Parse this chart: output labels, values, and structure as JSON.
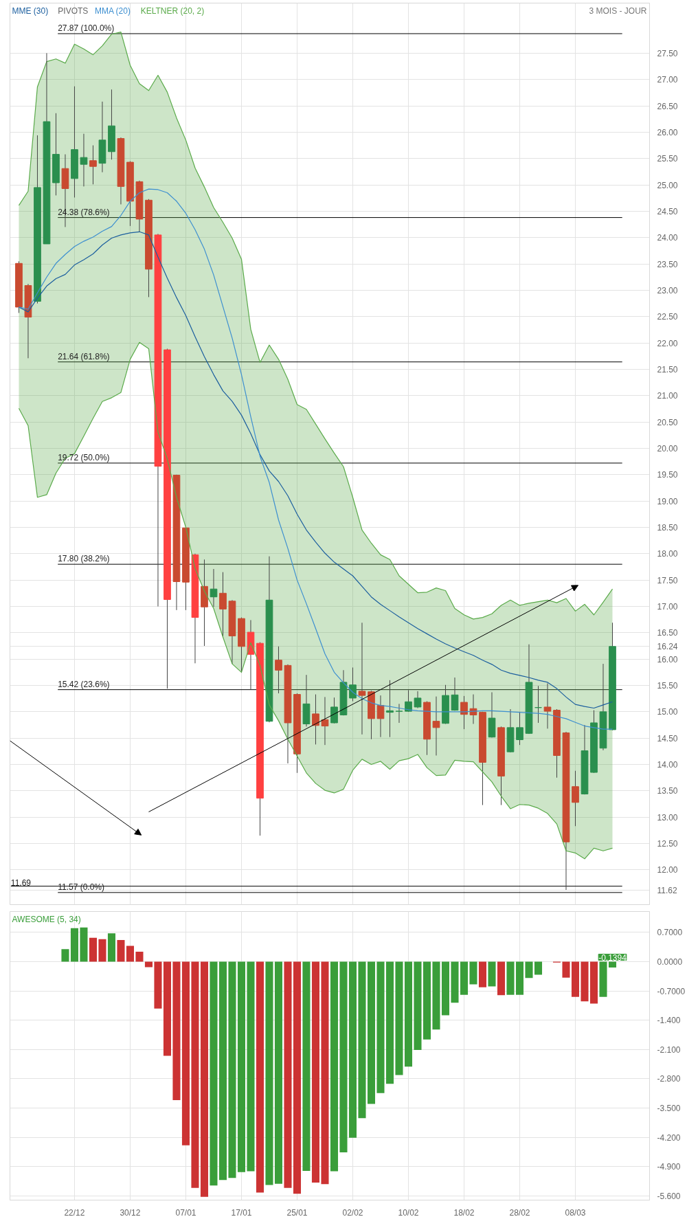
{
  "chart_data": [
    {
      "type": "candlestick",
      "subtitle": "3 MOIS - JOUR",
      "categories": [
        null,
        null,
        null,
        null,
        null,
        null,
        null,
        null,
        null,
        null,
        null,
        null,
        null,
        null,
        null,
        null,
        null,
        null,
        null,
        null,
        null,
        null,
        null,
        null,
        null,
        null,
        null,
        null,
        null,
        null,
        null,
        null,
        null,
        null,
        null,
        null,
        null,
        null,
        null,
        null,
        null,
        null,
        null,
        null,
        null,
        null,
        null,
        null,
        null,
        null,
        null,
        null,
        null,
        null,
        null,
        null,
        null,
        null,
        null,
        null,
        null,
        null,
        null,
        null,
        null
      ],
      "ohlc": [
        [
          23.51,
          23.55,
          22.57,
          22.68
        ],
        [
          23.09,
          23.12,
          21.71,
          22.49
        ],
        [
          22.79,
          25.94,
          22.75,
          24.95
        ],
        [
          23.88,
          27.5,
          23.88,
          26.2
        ],
        [
          25.04,
          26.36,
          24.8,
          25.58
        ],
        [
          25.31,
          25.58,
          24.2,
          24.93
        ],
        [
          25.12,
          26.87,
          24.76,
          25.67
        ],
        [
          25.39,
          25.97,
          24.97,
          25.52
        ],
        [
          25.46,
          25.75,
          25.01,
          25.35
        ],
        [
          25.41,
          26.58,
          25.24,
          25.85
        ],
        [
          25.63,
          26.81,
          25.48,
          26.12
        ],
        [
          25.88,
          25.9,
          24.63,
          24.97
        ],
        [
          25.43,
          25.45,
          24.22,
          24.69
        ],
        [
          25.06,
          25.08,
          24.1,
          24.35
        ],
        [
          24.71,
          24.73,
          22.87,
          23.4
        ],
        [
          24.05,
          24.07,
          17.0,
          19.66
        ],
        [
          21.87,
          21.89,
          15.44,
          17.13
        ],
        [
          19.49,
          19.5,
          16.93,
          17.47
        ],
        [
          18.49,
          18.5,
          16.93,
          17.46
        ],
        [
          17.98,
          18.0,
          15.92,
          16.79
        ],
        [
          17.38,
          17.89,
          16.25,
          16.99
        ],
        [
          17.18,
          17.71,
          16.99,
          17.33
        ],
        [
          17.25,
          17.65,
          16.41,
          16.95
        ],
        [
          17.1,
          17.12,
          15.91,
          16.44
        ],
        [
          16.77,
          16.79,
          15.74,
          16.24
        ],
        [
          16.51,
          16.74,
          15.42,
          16.09
        ],
        [
          16.3,
          16.32,
          12.65,
          13.36
        ],
        [
          14.82,
          17.95,
          14.8,
          17.12
        ],
        [
          15.98,
          16.24,
          15.35,
          15.79
        ],
        [
          15.88,
          15.9,
          14.02,
          14.79
        ],
        [
          15.33,
          15.35,
          13.84,
          14.2
        ],
        [
          14.77,
          15.7,
          14.72,
          15.15
        ],
        [
          14.96,
          15.33,
          14.38,
          14.74
        ],
        [
          14.85,
          15.28,
          14.37,
          14.73
        ],
        [
          14.79,
          15.27,
          14.78,
          15.09
        ],
        [
          14.94,
          15.79,
          14.93,
          15.56
        ],
        [
          15.26,
          15.84,
          15.2,
          15.51
        ],
        [
          15.39,
          16.69,
          14.57,
          15.31
        ],
        [
          15.38,
          15.4,
          14.48,
          14.87
        ],
        [
          15.12,
          15.31,
          14.52,
          14.87
        ],
        [
          14.99,
          15.6,
          14.52,
          15.02
        ],
        [
          15.01,
          15.15,
          14.79,
          15.01
        ],
        [
          15.01,
          15.41,
          15.0,
          15.19
        ],
        [
          15.09,
          15.39,
          15.07,
          15.26
        ],
        [
          15.18,
          15.2,
          14.18,
          14.48
        ],
        [
          14.82,
          15.29,
          14.17,
          14.7
        ],
        [
          14.78,
          15.51,
          14.77,
          15.31
        ],
        [
          15.03,
          15.65,
          15.02,
          15.32
        ],
        [
          15.18,
          15.3,
          14.67,
          14.95
        ],
        [
          15.06,
          15.33,
          14.77,
          14.94
        ],
        [
          14.99,
          15.0,
          13.23,
          14.04
        ],
        [
          14.52,
          15.37,
          14.51,
          14.88
        ],
        [
          14.7,
          14.72,
          13.23,
          13.78
        ],
        [
          14.24,
          15.05,
          14.23,
          14.7
        ],
        [
          14.47,
          15.0,
          14.37,
          14.7
        ],
        [
          14.59,
          16.28,
          14.58,
          15.56
        ],
        [
          15.08,
          15.49,
          14.79,
          15.08
        ],
        [
          15.09,
          15.54,
          14.68,
          15.01
        ],
        [
          15.03,
          15.05,
          13.75,
          14.17
        ],
        [
          14.6,
          14.62,
          11.62,
          12.53
        ],
        [
          13.58,
          13.88,
          12.83,
          13.28
        ],
        [
          13.44,
          14.75,
          13.43,
          14.26
        ],
        [
          13.85,
          15.03,
          13.84,
          14.79
        ],
        [
          14.31,
          15.91,
          14.27,
          15.0
        ],
        [
          14.66,
          16.69,
          14.65,
          16.24
        ]
      ],
      "colors": [
        "#c94a30",
        "#c94a30",
        "#2a8f4e",
        "#2a8f4e",
        "#2a8f4e",
        "#c94a30",
        "#2a8f4e",
        "#2a8f4e",
        "#c94a30",
        "#2a8f4e",
        "#2a8f4e",
        "#c94a30",
        "#c94a30",
        "#c94a30",
        "#c94a30",
        "#ff4040",
        "#ff4040",
        "#c94a30",
        "#c94a30",
        "#ff4040",
        "#c94a30",
        "#2a8f4e",
        "#c94a30",
        "#c94a30",
        "#c94a30",
        "#ff4040",
        "#ff4040",
        "#2a8f4e",
        "#c94a30",
        "#c94a30",
        "#c94a30",
        "#2a8f4e",
        "#c94a30",
        "#c94a30",
        "#2a8f4e",
        "#2a8f4e",
        "#2a8f4e",
        "#c94a30",
        "#c94a30",
        "#c94a30",
        "#2a8f4e",
        "#2a8f4e",
        "#2a8f4e",
        "#2a8f4e",
        "#c94a30",
        "#c94a30",
        "#2a8f4e",
        "#2a8f4e",
        "#c94a30",
        "#c94a30",
        "#c94a30",
        "#2a8f4e",
        "#c94a30",
        "#2a8f4e",
        "#2a8f4e",
        "#2a8f4e",
        "#2a8f4e",
        "#c94a30",
        "#c94a30",
        "#c94a30",
        "#c94a30",
        "#2a8f4e",
        "#2a8f4e",
        "#2a8f4e",
        "#2a8f4e"
      ],
      "series": [
        {
          "name": "MME (30)",
          "type": "line",
          "color": "#1b5e9e",
          "values": [
            22.68,
            22.59,
            22.85,
            23.08,
            23.22,
            23.3,
            23.48,
            23.58,
            23.69,
            23.86,
            23.99,
            24.05,
            24.09,
            24.11,
            24.05,
            23.63,
            23.23,
            22.86,
            22.52,
            22.12,
            21.74,
            21.4,
            21.09,
            20.89,
            20.63,
            20.28,
            19.88,
            19.57,
            19.37,
            19.1,
            18.75,
            18.45,
            18.22,
            18.01,
            17.84,
            17.71,
            17.58,
            17.38,
            17.18,
            17.04,
            16.92,
            16.8,
            16.69,
            16.58,
            16.48,
            16.38,
            16.29,
            16.21,
            16.14,
            16.07,
            15.98,
            15.9,
            15.79,
            15.73,
            15.69,
            15.65,
            15.6,
            15.56,
            15.44,
            15.28,
            15.14,
            15.1,
            15.07,
            15.13,
            15.19
          ]
        },
        {
          "name": "MMA (20)",
          "type": "line",
          "color": "#3d8fd0",
          "values": [
            22.68,
            22.64,
            22.95,
            23.25,
            23.51,
            23.68,
            23.83,
            23.93,
            24.01,
            24.12,
            24.21,
            24.42,
            24.69,
            24.85,
            24.92,
            24.91,
            24.85,
            24.69,
            24.46,
            24.15,
            23.78,
            23.29,
            22.69,
            22.09,
            21.4,
            20.6,
            19.85,
            19.35,
            18.64,
            18.1,
            17.5,
            17.05,
            16.58,
            16.1,
            15.75,
            15.55,
            15.37,
            15.25,
            15.17,
            15.12,
            15.1,
            15.07,
            15.04,
            15.02,
            15.01,
            15.0,
            15.0,
            15.0,
            15.0,
            15.01,
            15.02,
            15.02,
            15.01,
            15.0,
            14.99,
            14.98,
            14.97,
            14.95,
            14.91,
            14.87,
            14.8,
            14.73,
            14.7,
            14.67,
            14.67
          ]
        },
        {
          "type": "line",
          "color": "#5aaa4a",
          "values": [
            20.76,
            20.43,
            19.07,
            19.12,
            19.53,
            19.81,
            19.9,
            20.23,
            20.57,
            20.89,
            20.96,
            21.06,
            21.69,
            22.01,
            21.89,
            20.31,
            19.8,
            19.07,
            18.5,
            17.72,
            17.29,
            16.96,
            16.42,
            15.91,
            15.75,
            16.31,
            15.88,
            15.13,
            14.83,
            14.48,
            14.16,
            13.84,
            13.64,
            13.51,
            13.46,
            13.53,
            13.89,
            14.1,
            14.0,
            14.06,
            13.91,
            14.07,
            14.11,
            14.19,
            13.94,
            13.79,
            13.8,
            14.08,
            14.06,
            14.05,
            13.86,
            13.67,
            13.4,
            13.16,
            13.24,
            13.23,
            13.17,
            13.07,
            12.87,
            12.36,
            12.32,
            12.21,
            12.41,
            12.36,
            12.41
          ]
        },
        {
          "name": "KELTNER (20, 2)",
          "type": "line",
          "color": "#5aaa4a",
          "upper": [
            24.61,
            24.88,
            26.86,
            27.34,
            27.39,
            27.31,
            27.67,
            27.58,
            27.47,
            27.64,
            27.86,
            27.9,
            27.27,
            26.92,
            26.79,
            27.08,
            26.76,
            26.27,
            25.85,
            25.32,
            24.96,
            24.57,
            24.29,
            23.99,
            23.59,
            22.26,
            21.63,
            21.96,
            21.69,
            21.31,
            20.83,
            20.74,
            20.46,
            20.18,
            19.91,
            19.65,
            19.07,
            18.45,
            18.2,
            17.98,
            17.89,
            17.58,
            17.42,
            17.26,
            17.27,
            17.35,
            17.3,
            16.96,
            16.84,
            16.76,
            16.79,
            16.86,
            17.02,
            17.12,
            17.02,
            17.06,
            17.09,
            17.12,
            17.07,
            17.15,
            16.91,
            17.04,
            16.84,
            17.08,
            17.33
          ],
          "values": [
            24.61,
            24.88,
            26.86,
            27.34,
            27.39,
            27.31,
            27.67,
            27.58,
            27.47,
            27.64,
            27.86,
            27.9,
            27.27,
            26.92,
            26.79,
            27.08,
            26.76,
            26.27,
            25.85,
            25.32,
            24.96,
            24.57,
            24.29,
            23.99,
            23.59,
            22.26,
            21.63,
            21.96,
            21.69,
            21.31,
            20.83,
            20.74,
            20.46,
            20.18,
            19.91,
            19.65,
            19.07,
            18.45,
            18.2,
            17.98,
            17.89,
            17.58,
            17.42,
            17.26,
            17.27,
            17.35,
            17.3,
            16.96,
            16.84,
            16.76,
            16.79,
            16.86,
            17.02,
            17.12,
            17.02,
            17.06,
            17.09,
            17.12,
            17.07,
            17.15,
            16.91,
            17.04,
            16.84,
            17.08,
            17.33
          ],
          "lower": [
            20.76,
            20.43,
            19.07,
            19.12,
            19.53,
            19.81,
            19.9,
            20.23,
            20.57,
            20.89,
            20.96,
            21.06,
            21.69,
            22.01,
            21.89,
            20.31,
            19.8,
            19.07,
            18.5,
            17.72,
            17.29,
            16.96,
            16.42,
            15.91,
            15.75,
            16.31,
            15.88,
            15.13,
            14.83,
            14.48,
            14.16,
            13.84,
            13.64,
            13.51,
            13.46,
            13.53,
            13.89,
            14.1,
            14.0,
            14.06,
            13.91,
            14.07,
            14.11,
            14.19,
            13.94,
            13.79,
            13.8,
            14.08,
            14.06,
            14.05,
            13.86,
            13.67,
            13.4,
            13.16,
            13.24,
            13.23,
            13.17,
            13.07,
            12.87,
            12.36,
            12.32,
            12.21,
            12.41,
            12.36,
            12.41
          ]
        }
      ],
      "ylim": [
        11.34,
        28.45
      ],
      "yticks": [
        {
          "value": 12,
          "label": "12.00"
        },
        {
          "value": 12.5,
          "label": "12.50"
        },
        {
          "value": 13,
          "label": "13.00"
        },
        {
          "value": 13.5,
          "label": "13.50"
        },
        {
          "value": 14,
          "label": "14.00"
        },
        {
          "value": 14.5,
          "label": "14.50"
        },
        {
          "value": 15,
          "label": "15.00"
        },
        {
          "value": 15.5,
          "label": "15.50"
        },
        {
          "value": 16,
          "label": "16.00"
        },
        {
          "value": 16.5,
          "label": "16.50"
        },
        {
          "value": 17,
          "label": "17.00"
        },
        {
          "value": 17.5,
          "label": "17.50"
        },
        {
          "value": 18,
          "label": "18.00"
        },
        {
          "value": 18.5,
          "label": "18.50"
        },
        {
          "value": 19,
          "label": "19.00"
        },
        {
          "value": 19.5,
          "label": "19.50"
        },
        {
          "value": 20,
          "label": "20.00"
        },
        {
          "value": 20.5,
          "label": "20.50"
        },
        {
          "value": 21,
          "label": "21.00"
        },
        {
          "value": 21.5,
          "label": "21.50"
        },
        {
          "value": 22,
          "label": "22.00"
        },
        {
          "value": 22.5,
          "label": "22.50"
        },
        {
          "value": 23,
          "label": "23.00"
        },
        {
          "value": 23.5,
          "label": "23.50"
        },
        {
          "value": 24,
          "label": "24.00"
        },
        {
          "value": 24.5,
          "label": "24.50"
        },
        {
          "value": 25,
          "label": "25.00"
        },
        {
          "value": 25.5,
          "label": "25.50"
        },
        {
          "value": 26,
          "label": "26.00"
        },
        {
          "value": 26.5,
          "label": "26.50"
        },
        {
          "value": 27,
          "label": "27.00"
        },
        {
          "value": 27.5,
          "label": "27.50"
        },
        {
          "value": 16.24,
          "label": "16.24"
        },
        {
          "value": 11.62,
          "label": "11.62"
        }
      ],
      "ref_lines": [
        {
          "axis": "y",
          "value": 27.87,
          "label": "27.87  (100.0%)"
        },
        {
          "axis": "y",
          "value": 24.38,
          "label": "24.38  (78.6%)"
        },
        {
          "axis": "y",
          "value": 21.64,
          "label": "21.64  (61.8%)"
        },
        {
          "axis": "y",
          "value": 19.72,
          "label": "19.72  (50.0%)"
        },
        {
          "axis": "y",
          "value": 17.8,
          "label": "17.80  (38.2%)"
        },
        {
          "axis": "y",
          "value": 15.42,
          "label": "15.42  (23.6%)"
        },
        {
          "axis": "y",
          "value": 11.57,
          "label": "11.57  (0.0%)"
        },
        {
          "axis": "y",
          "value": 11.69,
          "label": "11.69"
        }
      ],
      "annotations": [
        "PIVOTS"
      ],
      "grid": true,
      "tick_labels": "y"
    },
    {
      "type": "bar",
      "categories": [
        null,
        null,
        null,
        null,
        null,
        null,
        "22/12",
        null,
        null,
        null,
        null,
        null,
        "30/12",
        null,
        null,
        null,
        null,
        null,
        "07/01",
        null,
        null,
        null,
        null,
        null,
        "17/01",
        null,
        null,
        null,
        null,
        null,
        "25/01",
        null,
        null,
        null,
        null,
        null,
        "02/02",
        null,
        null,
        null,
        null,
        null,
        "10/02",
        null,
        null,
        null,
        null,
        null,
        "18/02",
        null,
        null,
        null,
        null,
        null,
        "28/02",
        null,
        null,
        null,
        null,
        null,
        "08/03",
        null,
        null,
        null,
        null
      ],
      "series": [
        {
          "name": "AWESOME (5, 34)",
          "color": "#3a9e3a",
          "values": [
            null,
            null,
            null,
            null,
            null,
            0.3,
            0.8,
            0.82,
            0.57,
            0.54,
            0.68,
            0.52,
            0.38,
            0.24,
            -0.13,
            -1.12,
            -2.25,
            -3.31,
            -4.39,
            -5.41,
            -5.62,
            -5.35,
            -5.22,
            -5.17,
            -5.03,
            -5.01,
            -5.52,
            -5.34,
            -5.31,
            -5.41,
            -5.55,
            -5.0,
            -5.28,
            -5.32,
            -5.01,
            -4.56,
            -4.21,
            -3.74,
            -3.4,
            -3.14,
            -2.92,
            -2.71,
            -2.51,
            -2.11,
            -1.86,
            -1.62,
            -1.28,
            -0.98,
            -0.79,
            -0.54,
            -0.61,
            -0.59,
            -0.8,
            -0.79,
            -0.79,
            -0.39,
            -0.31,
            null,
            -0.02,
            -0.38,
            -0.84,
            -0.95,
            -1.0,
            -0.84,
            -0.1394
          ],
          "value_labels": [
            null,
            null,
            null,
            null,
            null,
            null,
            null,
            null,
            null,
            null,
            null,
            null,
            null,
            null,
            null,
            null,
            null,
            null,
            null,
            null,
            null,
            null,
            null,
            null,
            null,
            null,
            null,
            null,
            null,
            null,
            null,
            null,
            null,
            null,
            null,
            null,
            null,
            null,
            null,
            null,
            null,
            null,
            null,
            null,
            null,
            null,
            null,
            null,
            null,
            null,
            null,
            null,
            null,
            null,
            null,
            null,
            null,
            null,
            null,
            null,
            null,
            null,
            null,
            null,
            "-0.1394"
          ],
          "colors": [
            null,
            null,
            null,
            null,
            null,
            "#3a9e3a",
            "#3a9e3a",
            "#3a9e3a",
            "#cc3333",
            "#cc3333",
            "#3a9e3a",
            "#cc3333",
            "#cc3333",
            "#cc3333",
            "#cc3333",
            "#cc3333",
            "#cc3333",
            "#cc3333",
            "#cc3333",
            "#cc3333",
            "#cc3333",
            "#3a9e3a",
            "#3a9e3a",
            "#3a9e3a",
            "#3a9e3a",
            "#3a9e3a",
            "#cc3333",
            "#3a9e3a",
            "#3a9e3a",
            "#cc3333",
            "#cc3333",
            "#3a9e3a",
            "#cc3333",
            "#cc3333",
            "#3a9e3a",
            "#3a9e3a",
            "#3a9e3a",
            "#3a9e3a",
            "#3a9e3a",
            "#3a9e3a",
            "#3a9e3a",
            "#3a9e3a",
            "#3a9e3a",
            "#3a9e3a",
            "#3a9e3a",
            "#3a9e3a",
            "#3a9e3a",
            "#3a9e3a",
            "#3a9e3a",
            "#3a9e3a",
            "#cc3333",
            "#3a9e3a",
            "#cc3333",
            "#3a9e3a",
            "#3a9e3a",
            "#3a9e3a",
            "#3a9e3a",
            null,
            "#cc3333",
            "#cc3333",
            "#cc3333",
            "#cc3333",
            "#cc3333",
            "#3a9e3a",
            "#3a9e3a"
          ]
        }
      ],
      "ylim": [
        -5.7,
        1.2
      ],
      "yticks": [
        {
          "value": 0.7,
          "label": "0.7000"
        },
        {
          "value": 0,
          "label": "0.0000"
        },
        {
          "value": -0.7,
          "label": "-0.7000"
        },
        {
          "value": -1.4,
          "label": "-1.400"
        },
        {
          "value": -2.1,
          "label": "-2.100"
        },
        {
          "value": -2.8,
          "label": "-2.800"
        },
        {
          "value": -3.5,
          "label": "-3.500"
        },
        {
          "value": -4.2,
          "label": "-4.200"
        },
        {
          "value": -4.9,
          "label": "-4.900"
        },
        {
          "value": -5.6,
          "label": "-5.600"
        }
      ],
      "grid": true
    }
  ]
}
